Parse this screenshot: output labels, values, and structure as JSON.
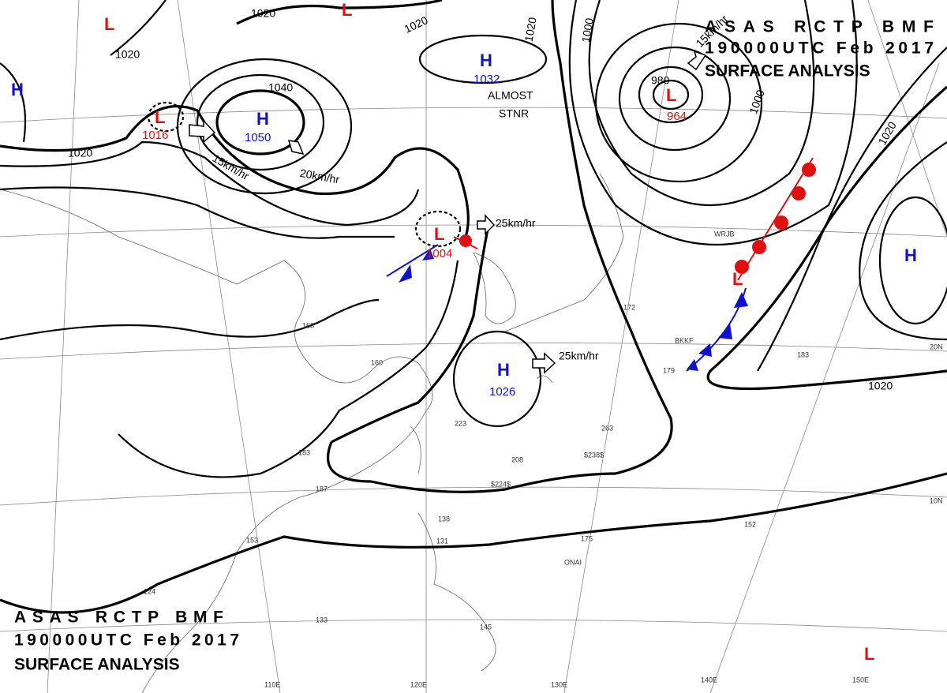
{
  "header": {
    "line1": "ASAS RCTP BMF",
    "line2": "190000UTC Feb 2017",
    "line3": "SURFACE ANALYSIS"
  },
  "centers": [
    {
      "type": "L",
      "pressure": "1016"
    },
    {
      "type": "H",
      "pressure": "1050"
    },
    {
      "type": "H",
      "pressure": "1032"
    },
    {
      "type": "L",
      "pressure": "1004"
    },
    {
      "type": "H",
      "pressure": "1026"
    },
    {
      "type": "L",
      "pressure": "964"
    },
    {
      "type": "H"
    },
    {
      "type": "H"
    },
    {
      "type": "L"
    },
    {
      "type": "L"
    },
    {
      "type": "L"
    },
    {
      "type": "L"
    }
  ],
  "isobar_labels": [
    "1020",
    "1020",
    "1040",
    "1020",
    "1020",
    "1020",
    "1000",
    "980",
    "1000",
    "1020",
    "1020"
  ],
  "motion_labels": [
    "15km/hr",
    "20km/hr",
    "25km/hr",
    "25km/hr",
    "15km/hr"
  ],
  "notes": [
    "ALMOST",
    "STNR"
  ],
  "graticule_labels": [
    "110E",
    "120E",
    "130E",
    "140E",
    "150E",
    "20N",
    "10N"
  ],
  "station_labels": [
    "163",
    "160",
    "183",
    "187",
    "223",
    "263",
    "208",
    "172",
    "179",
    "183",
    "152",
    "133",
    "131",
    "138",
    "145",
    "175",
    "153",
    "124",
    "BKKF",
    "WRJB",
    "ONAI",
    "$238$",
    "$224$"
  ]
}
